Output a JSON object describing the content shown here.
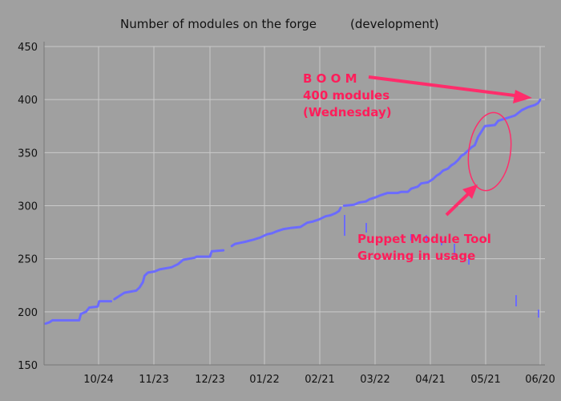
{
  "colors": {
    "background": "#a0a0a0",
    "grid": "#c9c9c9",
    "series": "#6b6bff",
    "annotation": "#ff2d6b"
  },
  "chart_data": {
    "type": "line",
    "title": "Number of modules on the forge",
    "subtitle": "(development)",
    "xlabel": "",
    "ylabel": "",
    "ylim": [
      150,
      450
    ],
    "yticks": [
      150,
      200,
      250,
      300,
      350,
      400,
      450
    ],
    "xticks": [
      "10/24",
      "11/23",
      "12/23",
      "01/22",
      "02/21",
      "03/22",
      "04/21",
      "05/21",
      "06/20"
    ],
    "grid": true,
    "legend": "none",
    "series": [
      {
        "segments": [
          [
            [
              0,
              189
            ],
            [
              2,
              190
            ],
            [
              4,
              192
            ],
            [
              20,
              192
            ],
            [
              21,
              198
            ],
            [
              24,
              200
            ],
            [
              26,
              204
            ],
            [
              31,
              205
            ],
            [
              32,
              210
            ],
            [
              39,
              210
            ]
          ],
          [
            [
              41,
              212
            ],
            [
              44,
              215
            ],
            [
              47,
              218
            ],
            [
              54,
              220
            ],
            [
              56,
              223
            ],
            [
              58,
              228
            ],
            [
              59,
              234
            ],
            [
              61,
              237
            ],
            [
              65,
              238
            ],
            [
              68,
              240
            ],
            [
              75,
              242
            ],
            [
              79,
              245
            ],
            [
              82,
              249
            ],
            [
              89,
              251
            ],
            [
              90,
              252
            ],
            [
              98,
              252
            ],
            [
              99,
              257
            ],
            [
              106,
              258
            ]
          ],
          [
            [
              111,
              262
            ],
            [
              113,
              264
            ],
            [
              116,
              265
            ],
            [
              119,
              266
            ],
            [
              124,
              268
            ],
            [
              128,
              270
            ],
            [
              132,
              273
            ],
            [
              135,
              274
            ],
            [
              138,
              276
            ],
            [
              142,
              278
            ],
            [
              146,
              279
            ],
            [
              152,
              280
            ],
            [
              156,
              284
            ],
            [
              159,
              285
            ],
            [
              163,
              287
            ],
            [
              167,
              290
            ],
            [
              170,
              291
            ],
            [
              173,
              293
            ],
            [
              175,
              295
            ],
            [
              176,
              298
            ]
          ],
          [
            [
              178,
              300
            ],
            [
              184,
              301
            ],
            [
              187,
              303
            ],
            [
              191,
              304
            ],
            [
              193,
              306
            ],
            [
              197,
              308
            ],
            [
              200,
              310
            ],
            [
              204,
              312
            ],
            [
              210,
              312
            ],
            [
              212,
              313
            ],
            [
              216,
              313
            ],
            [
              218,
              316
            ],
            [
              222,
              318
            ],
            [
              224,
              321
            ],
            [
              228,
              322
            ],
            [
              231,
              325
            ],
            [
              233,
              328
            ],
            [
              235,
              330
            ],
            [
              237,
              333
            ],
            [
              240,
              335
            ],
            [
              242,
              338
            ],
            [
              244,
              340
            ],
            [
              246,
              343
            ],
            [
              248,
              347
            ],
            [
              250,
              349
            ],
            [
              252,
              352
            ],
            [
              254,
              355
            ],
            [
              256,
              357
            ],
            [
              258,
              365
            ],
            [
              260,
              370
            ],
            [
              262,
              375
            ],
            [
              268,
              376
            ],
            [
              270,
              380
            ],
            [
              276,
              383
            ],
            [
              280,
              385
            ],
            [
              284,
              390
            ],
            [
              288,
              393
            ],
            [
              292,
              395
            ],
            [
              294,
              397
            ],
            [
              295,
              400
            ]
          ]
        ]
      }
    ],
    "annotations": [
      {
        "lines": [
          "B O O M",
          "400 modules",
          "(Wednesday)"
        ]
      },
      {
        "lines": [
          "Puppet Module Tool",
          "Growing in usage"
        ]
      }
    ]
  }
}
